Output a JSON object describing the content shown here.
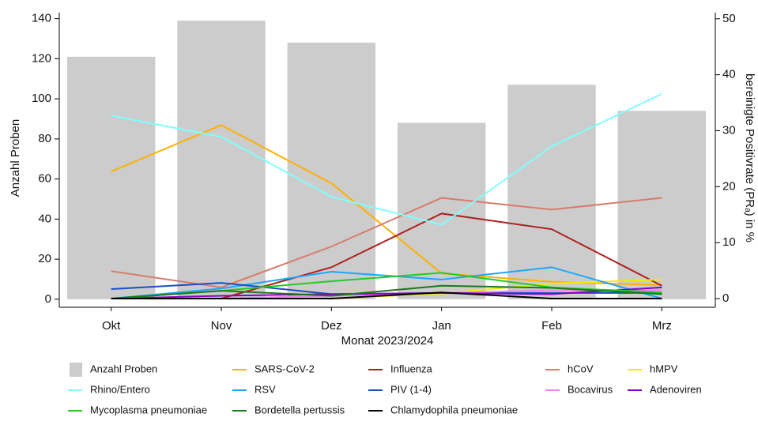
{
  "chart_data": {
    "type": "bar",
    "x_label": "Monat 2023/2024",
    "y_label": "Anzahl Proben",
    "y2_label": "bereinigte Positivrate (PRₐ) in %",
    "categories": [
      "Okt",
      "Nov",
      "Dez",
      "Jan",
      "Feb",
      "Mrz"
    ],
    "ylim": [
      -4,
      143
    ],
    "yticks": [
      0,
      20,
      40,
      60,
      80,
      100,
      120,
      140
    ],
    "y2lim": [
      -1.55,
      51.1
    ],
    "y2ticks": [
      0,
      10,
      20,
      30,
      40,
      50
    ],
    "legend": "bottom",
    "series": [
      {
        "name": "Anzahl Proben",
        "type": "bar",
        "color": "#cccccc",
        "values": [
          121,
          139,
          128,
          88,
          107,
          94
        ]
      },
      {
        "name": "SARS-CoV-2",
        "type": "line",
        "axis": "y2",
        "color": "#ffb000",
        "values": [
          22.7,
          31.0,
          20.6,
          4.5,
          3.0,
          2.4
        ]
      },
      {
        "name": "Influenza",
        "type": "line",
        "axis": "y2",
        "color": "#b01e1e",
        "values": [
          0,
          0,
          5.6,
          15.2,
          12.4,
          2.3
        ]
      },
      {
        "name": "hCoV",
        "type": "line",
        "axis": "y2",
        "color": "#d97a6a",
        "values": [
          4.9,
          2.0,
          9.3,
          18.0,
          15.9,
          18.0
        ]
      },
      {
        "name": "hMPV",
        "type": "line",
        "axis": "y2",
        "color": "#eeee00",
        "values": [
          0,
          0,
          0,
          0.9,
          2.7,
          3.4
        ]
      },
      {
        "name": "Rhino/Entero",
        "type": "line",
        "axis": "y2",
        "color": "#80ffff",
        "values": [
          32.7,
          28.9,
          18.2,
          13.2,
          27.2,
          36.6
        ]
      },
      {
        "name": "RSV",
        "type": "line",
        "axis": "y2",
        "color": "#1aa7ff",
        "values": [
          0,
          1.8,
          4.8,
          3.4,
          5.6,
          0
        ]
      },
      {
        "name": "PIV (1-4)",
        "type": "line",
        "axis": "y2",
        "color": "#1a4fc4",
        "values": [
          1.7,
          2.8,
          0.8,
          1.0,
          1.0,
          1.0
        ]
      },
      {
        "name": "Bocavirus",
        "type": "line",
        "axis": "y2",
        "color": "#ee82ee",
        "values": [
          0,
          0,
          0.5,
          1.0,
          1.5,
          1.5
        ]
      },
      {
        "name": "Adenoviren",
        "type": "line",
        "axis": "y2",
        "color": "#8a00c4",
        "values": [
          0,
          0.5,
          0.8,
          1.0,
          0.8,
          2.0
        ]
      },
      {
        "name": "Mycoplasma pneumoniae",
        "type": "line",
        "axis": "y2",
        "color": "#22cc22",
        "values": [
          0,
          1.4,
          3.1,
          4.6,
          2.0,
          1.1
        ]
      },
      {
        "name": "Bordetella pertussis",
        "type": "line",
        "axis": "y2",
        "color": "#1a7a1a",
        "values": [
          0,
          1.4,
          0.5,
          2.3,
          1.9,
          0.8
        ]
      },
      {
        "name": "Chlamydophila pneumoniae",
        "type": "line",
        "axis": "y2",
        "color": "#000000",
        "values": [
          0,
          0,
          0,
          1.1,
          0,
          0
        ]
      }
    ]
  }
}
